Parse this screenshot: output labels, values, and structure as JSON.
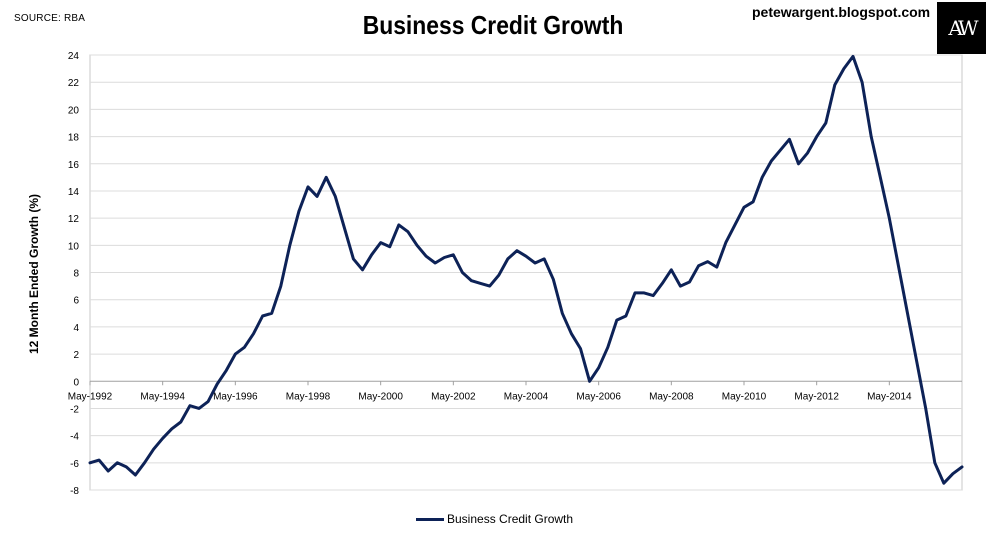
{
  "header": {
    "source": "SOURCE: RBA",
    "blog": "petewargent.blogspot.com",
    "logo_text": "AW"
  },
  "chart_data": {
    "type": "line",
    "title": "Business Credit Growth",
    "ylabel": "12 Month Ended Growth (%)",
    "xlabel": "",
    "ylim": [
      -8,
      24
    ],
    "yticks": [
      -8,
      -6,
      -4,
      -2,
      0,
      2,
      4,
      6,
      8,
      10,
      12,
      14,
      16,
      18,
      20,
      22,
      24
    ],
    "xlim": [
      "1992-05",
      "2016-05"
    ],
    "xticks": [
      "May-1992",
      "May-1994",
      "May-1996",
      "May-1998",
      "May-2000",
      "May-2002",
      "May-2004",
      "May-2006",
      "May-2008",
      "May-2010",
      "May-2012",
      "May-2014"
    ],
    "grid": "horizontal",
    "legend": "bottom-center",
    "line_color": "#0d2257",
    "series": [
      {
        "name": "Business Credit Growth",
        "points": [
          [
            "1992-05",
            -6.0
          ],
          [
            "1992-08",
            -5.8
          ],
          [
            "1992-11",
            -6.6
          ],
          [
            "1993-02",
            -6.0
          ],
          [
            "1993-05",
            -6.3
          ],
          [
            "1993-08",
            -6.9
          ],
          [
            "1993-11",
            -6.0
          ],
          [
            "1994-02",
            -5.0
          ],
          [
            "1994-05",
            -4.2
          ],
          [
            "1994-08",
            -3.5
          ],
          [
            "1994-11",
            -3.0
          ],
          [
            "1995-02",
            -1.8
          ],
          [
            "1995-05",
            -2.0
          ],
          [
            "1995-08",
            -1.5
          ],
          [
            "1995-11",
            -0.2
          ],
          [
            "1996-02",
            0.8
          ],
          [
            "1996-05",
            2.0
          ],
          [
            "1996-08",
            2.5
          ],
          [
            "1996-11",
            3.5
          ],
          [
            "1997-02",
            4.8
          ],
          [
            "1997-05",
            5.0
          ],
          [
            "1997-08",
            7.0
          ],
          [
            "1997-11",
            10.0
          ],
          [
            "1998-02",
            12.5
          ],
          [
            "1998-05",
            14.3
          ],
          [
            "1998-08",
            13.6
          ],
          [
            "1998-11",
            15.0
          ],
          [
            "1999-02",
            13.6
          ],
          [
            "1999-05",
            11.3
          ],
          [
            "1999-08",
            9.0
          ],
          [
            "1999-11",
            8.2
          ],
          [
            "2000-02",
            9.3
          ],
          [
            "2000-05",
            10.2
          ],
          [
            "2000-08",
            9.9
          ],
          [
            "2000-11",
            11.5
          ],
          [
            "2001-02",
            11.0
          ],
          [
            "2001-05",
            10.0
          ],
          [
            "2001-08",
            9.2
          ],
          [
            "2001-11",
            8.7
          ],
          [
            "2002-02",
            9.1
          ],
          [
            "2002-05",
            9.3
          ],
          [
            "2002-08",
            8.0
          ],
          [
            "2002-11",
            7.4
          ],
          [
            "2003-02",
            7.2
          ],
          [
            "2003-05",
            7.0
          ],
          [
            "2003-08",
            7.8
          ],
          [
            "2003-11",
            9.0
          ],
          [
            "2004-02",
            9.6
          ],
          [
            "2004-05",
            9.2
          ],
          [
            "2004-08",
            8.7
          ],
          [
            "2004-11",
            9.0
          ],
          [
            "2005-02",
            7.5
          ],
          [
            "2005-05",
            5.0
          ],
          [
            "2005-08",
            3.5
          ],
          [
            "2005-11",
            2.4
          ],
          [
            "2006-02",
            0.0
          ],
          [
            "2006-05",
            1.0
          ],
          [
            "2006-08",
            2.5
          ],
          [
            "2006-11",
            4.5
          ],
          [
            "2007-02",
            4.8
          ],
          [
            "2007-05",
            6.5
          ],
          [
            "2007-08",
            6.5
          ],
          [
            "2007-11",
            6.3
          ],
          [
            "2008-02",
            7.2
          ],
          [
            "2008-05",
            8.2
          ],
          [
            "2008-08",
            7.0
          ],
          [
            "2008-11",
            7.3
          ],
          [
            "2009-02",
            8.5
          ],
          [
            "2009-05",
            8.8
          ],
          [
            "2009-08",
            8.4
          ],
          [
            "2009-11",
            10.2
          ],
          [
            "2010-02",
            11.5
          ],
          [
            "2010-05",
            12.8
          ],
          [
            "2010-08",
            13.2
          ],
          [
            "2010-11",
            15.0
          ],
          [
            "2011-02",
            16.2
          ],
          [
            "2011-05",
            17.0
          ],
          [
            "2011-08",
            17.8
          ],
          [
            "2011-11",
            16.0
          ],
          [
            "2012-02",
            16.8
          ],
          [
            "2012-05",
            18.0
          ],
          [
            "2012-08",
            19.0
          ],
          [
            "2012-11",
            21.8
          ],
          [
            "2013-02",
            23.0
          ],
          [
            "2013-05",
            23.9
          ],
          [
            "2013-08",
            22.0
          ],
          [
            "2013-11",
            18.0
          ],
          [
            "2014-02",
            15.0
          ],
          [
            "2014-05",
            12.0
          ],
          [
            "2014-08",
            8.5
          ],
          [
            "2014-11",
            5.0
          ],
          [
            "2015-02",
            1.5
          ],
          [
            "2015-05",
            -2.0
          ],
          [
            "2015-08",
            -6.0
          ],
          [
            "2015-11",
            -7.5
          ],
          [
            "2016-02",
            -6.8
          ],
          [
            "2016-05",
            -6.3
          ]
        ]
      }
    ]
  }
}
